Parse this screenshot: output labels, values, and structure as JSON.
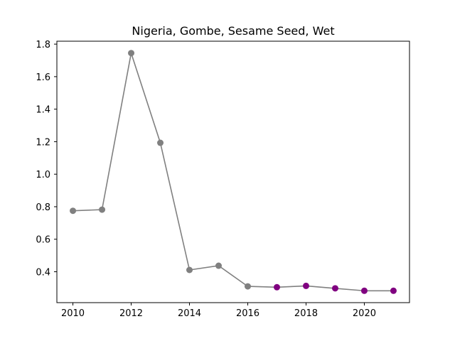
{
  "chart_data": {
    "type": "line",
    "title": "Nigeria, Gombe, Sesame Seed, Wet",
    "xlabel": "",
    "ylabel": "",
    "x": [
      2010,
      2011,
      2012,
      2013,
      2014,
      2015,
      2016,
      2017,
      2018,
      2019,
      2020,
      2021
    ],
    "values": [
      0.775,
      0.782,
      1.745,
      1.193,
      0.411,
      0.437,
      0.31,
      0.305,
      0.313,
      0.298,
      0.283,
      0.283
    ],
    "point_colors": [
      "#808080",
      "#808080",
      "#808080",
      "#808080",
      "#808080",
      "#808080",
      "#808080",
      "#800080",
      "#800080",
      "#800080",
      "#800080",
      "#800080"
    ],
    "line_color": "#808080",
    "xlim": [
      2009.45,
      2021.55
    ],
    "ylim": [
      0.21,
      1.818
    ],
    "xticks": [
      2010,
      2012,
      2014,
      2016,
      2018,
      2020
    ],
    "yticks": [
      0.4,
      0.6,
      0.8,
      1.0,
      1.2,
      1.4,
      1.6,
      1.8
    ],
    "ytick_labels": [
      "0.4",
      "0.6",
      "0.8",
      "1.0",
      "1.2",
      "1.4",
      "1.6",
      "1.8"
    ],
    "grid": false,
    "legend": "none"
  }
}
